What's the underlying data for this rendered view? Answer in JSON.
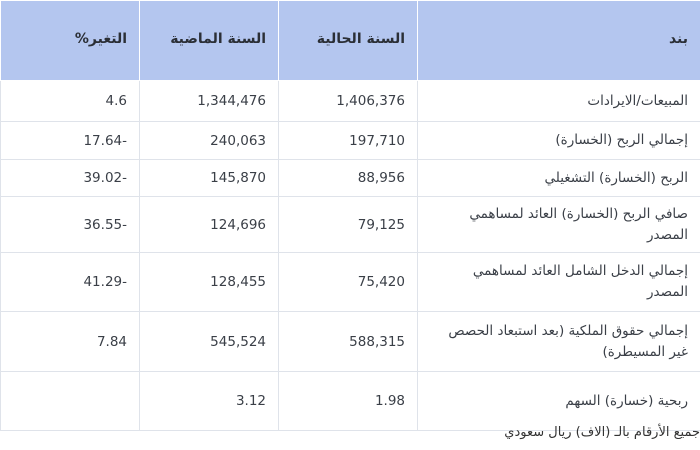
{
  "table": {
    "headers": {
      "item": "بند",
      "current_year": "السنة الحالية",
      "previous_year": "السنة الماضية",
      "change": "التغير%"
    },
    "rows": [
      {
        "item": "المبيعات/الايرادات",
        "current": "1,406,376",
        "previous": "1,344,476",
        "change": "4.6"
      },
      {
        "item": "إجمالي الربح (الخسارة)",
        "current": "197,710",
        "previous": "240,063",
        "change": "17.64-"
      },
      {
        "item": "الربح (الخسارة) التشغيلي",
        "current": "88,956",
        "previous": "145,870",
        "change": "39.02-"
      },
      {
        "item": "صافي الربح (الخسارة) العائد لمساهمي المصدر",
        "current": "79,125",
        "previous": "124,696",
        "change": "36.55-"
      },
      {
        "item": "إجمالي الدخل الشامل العائد لمساهمي المصدر",
        "current": "75,420",
        "previous": "128,455",
        "change": "41.29-"
      },
      {
        "item": "إجمالي حقوق الملكية (بعد استبعاد الحصص غير المسيطرة)",
        "current": "588,315",
        "previous": "545,524",
        "change": "7.84"
      },
      {
        "item": "ربحية (خسارة) السهم",
        "current": "1.98",
        "previous": "3.12",
        "change": ""
      }
    ]
  },
  "footnote": "جميع الأرقام بالـ (الاف) ريال سعودي",
  "colors": {
    "header_bg": "#b4c6ef",
    "value_green": "#3fae3f",
    "border": "#dfe3ea"
  }
}
